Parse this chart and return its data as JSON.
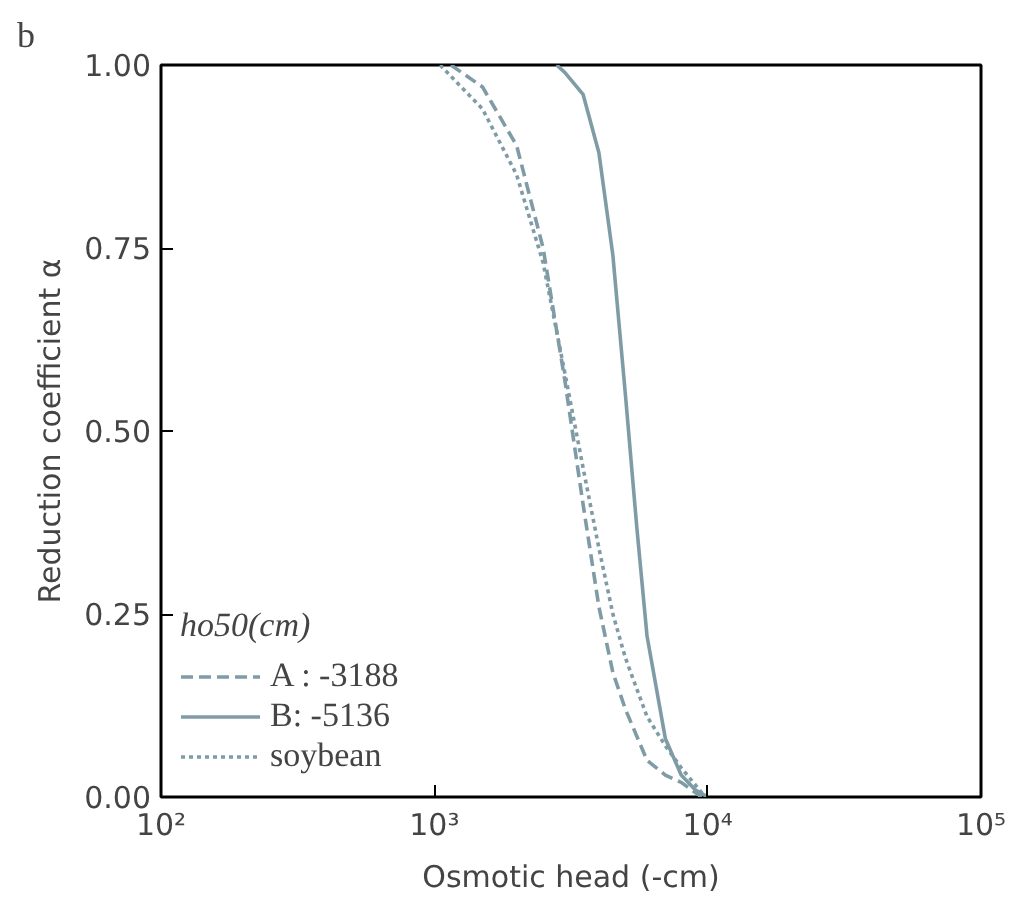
{
  "chart_data": {
    "type": "line",
    "xlabel": "Osmotic head (-cm)",
    "ylabel": "Reduction coefficient α",
    "legend_title": "ho50(cm)",
    "annotations": [
      "b"
    ],
    "log": "x",
    "xlim": [
      100,
      100000
    ],
    "ylim": [
      0,
      1
    ],
    "xticks": [
      {
        "value": 100,
        "label": "10²"
      },
      {
        "value": 1000,
        "label": "10³"
      },
      {
        "value": 10000,
        "label": "10⁴"
      },
      {
        "value": 100000,
        "label": "10⁵"
      }
    ],
    "yticks": [
      {
        "value": 0,
        "label": "0.00"
      },
      {
        "value": 0.25,
        "label": "0.25"
      },
      {
        "value": 0.5,
        "label": "0.50"
      },
      {
        "value": 0.75,
        "label": "0.75"
      },
      {
        "value": 1,
        "label": "1.00"
      }
    ],
    "grid": false,
    "legend": "bottom left",
    "marker": "none",
    "series": [
      {
        "name": "A : -3188",
        "color": "#7f9ca6",
        "line_style": "dashed",
        "x": [
          1150,
          1500,
          2000,
          2500,
          3000,
          3500,
          4000,
          4500,
          5000,
          6000,
          7000,
          8000,
          9500
        ],
        "values": [
          1.0,
          0.97,
          0.89,
          0.75,
          0.57,
          0.4,
          0.26,
          0.17,
          0.12,
          0.05,
          0.03,
          0.02,
          0.0
        ]
      },
      {
        "name": "B: -5136",
        "color": "#7f9ca6",
        "line_style": "solid",
        "x": [
          2800,
          3000,
          3500,
          4000,
          4500,
          5000,
          5500,
          6000,
          7000,
          8000,
          9000,
          10000
        ],
        "values": [
          1.0,
          0.99,
          0.96,
          0.88,
          0.74,
          0.55,
          0.37,
          0.22,
          0.08,
          0.03,
          0.01,
          0.0
        ]
      },
      {
        "name": "soybean",
        "color": "#7f9ca6",
        "line_style": "dotted",
        "x": [
          1050,
          1500,
          2000,
          2500,
          3000,
          3500,
          4000,
          4500,
          5000,
          6000,
          7000,
          8000,
          9800
        ],
        "values": [
          1.0,
          0.94,
          0.85,
          0.73,
          0.58,
          0.45,
          0.34,
          0.25,
          0.19,
          0.11,
          0.07,
          0.04,
          0.0
        ]
      }
    ]
  }
}
